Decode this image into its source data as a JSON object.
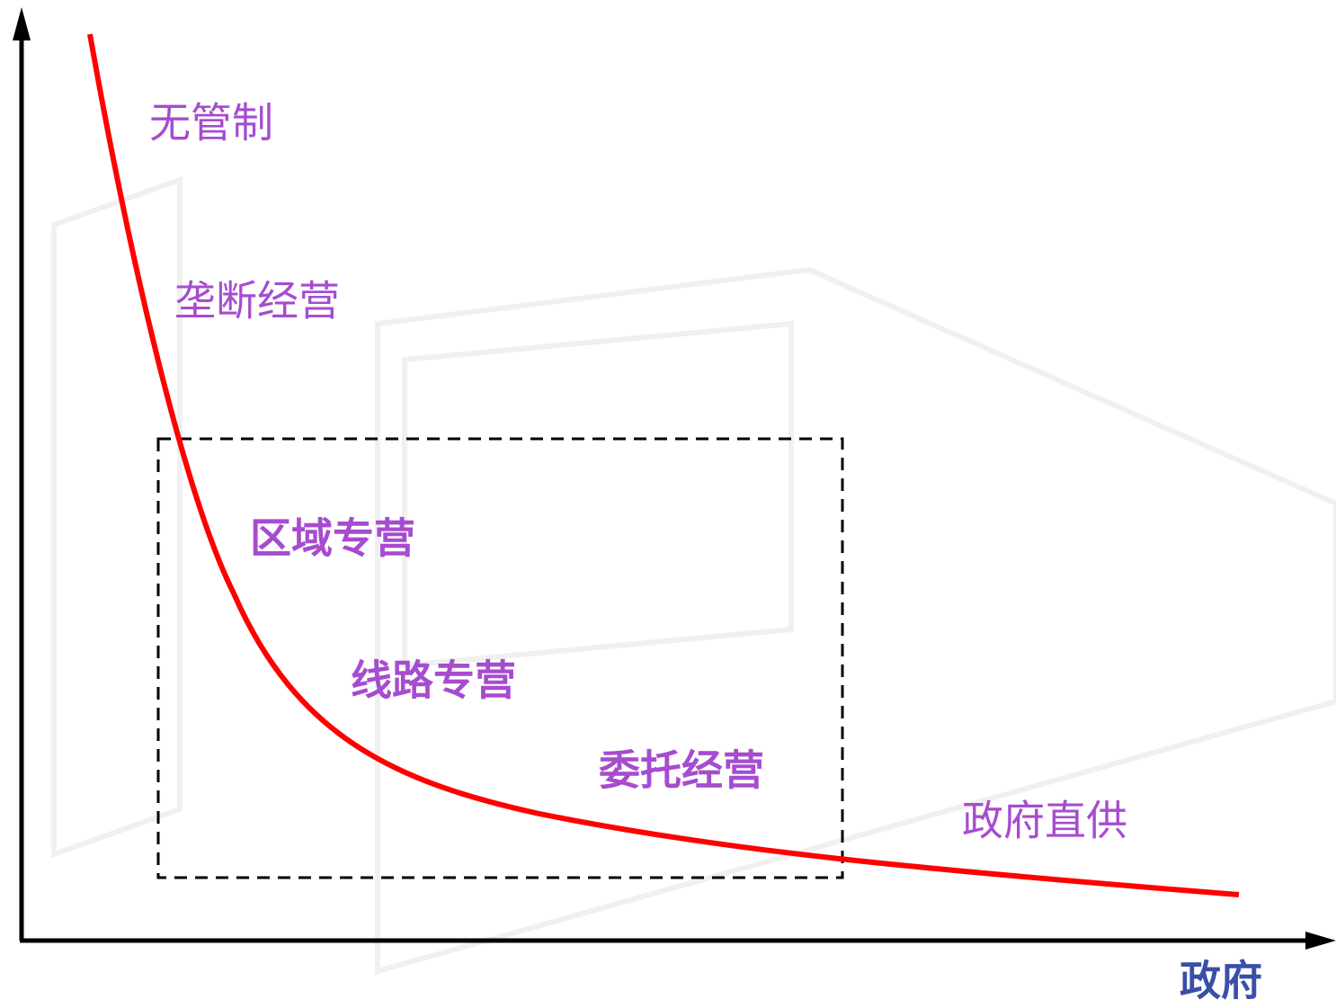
{
  "labels": {
    "no_regulation": "无管制",
    "monopoly": "垄断经营",
    "regional": "区域专营",
    "route": "线路专营",
    "entrusted": "委托经营",
    "government_direct": "政府直供"
  },
  "x_axis_label": "政府"
}
